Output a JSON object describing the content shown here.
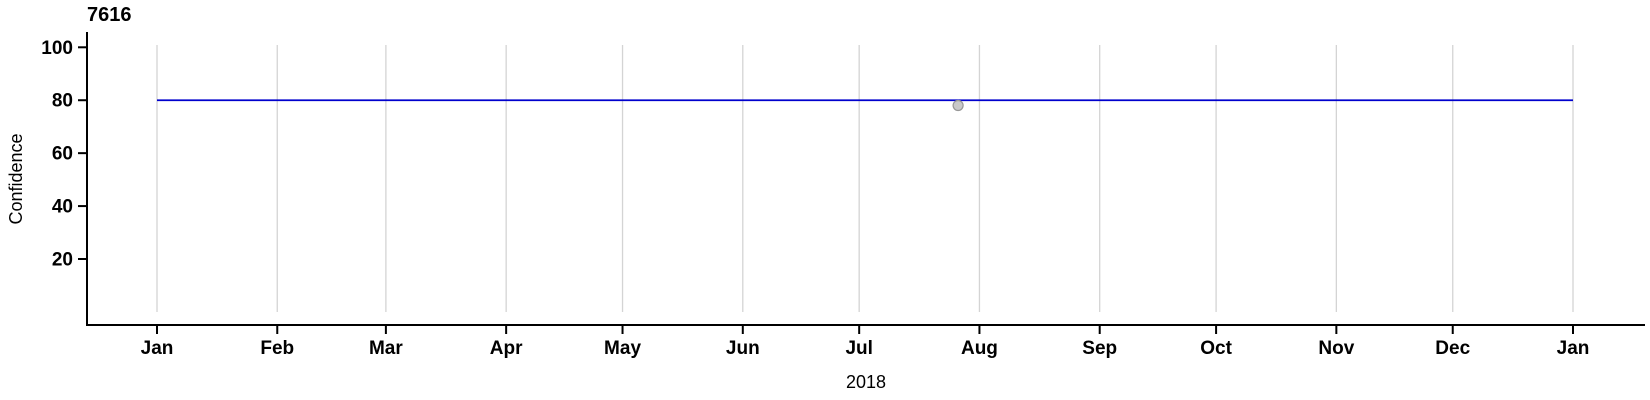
{
  "chart_data": {
    "type": "line",
    "title": "7616",
    "xlabel": "2018",
    "ylabel": "Confidence",
    "x_axis": {
      "unit": "month-of-2018",
      "tick_labels": [
        "Jan",
        "Feb",
        "Mar",
        "Apr",
        "May",
        "Jun",
        "Jul",
        "Aug",
        "Sep",
        "Oct",
        "Nov",
        "Dec",
        "Jan"
      ],
      "tick_day_of_year": [
        0,
        31,
        59,
        90,
        120,
        151,
        181,
        212,
        243,
        273,
        304,
        334,
        365
      ],
      "range_days": [
        0,
        365
      ],
      "grid": "vertical-only"
    },
    "y_axis": {
      "ticks": [
        20,
        40,
        60,
        80,
        100
      ],
      "ylim": [
        0,
        100
      ],
      "grid": "none"
    },
    "series": [
      {
        "name": "confidence-line",
        "type": "line",
        "color": "#0000CD",
        "points": [
          {
            "day": 0,
            "value": 80
          },
          {
            "day": 365,
            "value": 80
          }
        ]
      }
    ],
    "scatter_points": [
      {
        "name": "outlier-point",
        "day": 206.5,
        "approx_date": "Jul 26",
        "value": 78,
        "fill": "#C8C8C8",
        "stroke": "#979797"
      }
    ],
    "colors": {
      "line": "#0000CD",
      "point_fill": "#C8C8C8",
      "point_stroke": "#979797",
      "grid": "#D4D4D4",
      "axis": "#000000",
      "text": "#000000",
      "background": "#FFFFFF"
    },
    "legend": "none"
  }
}
